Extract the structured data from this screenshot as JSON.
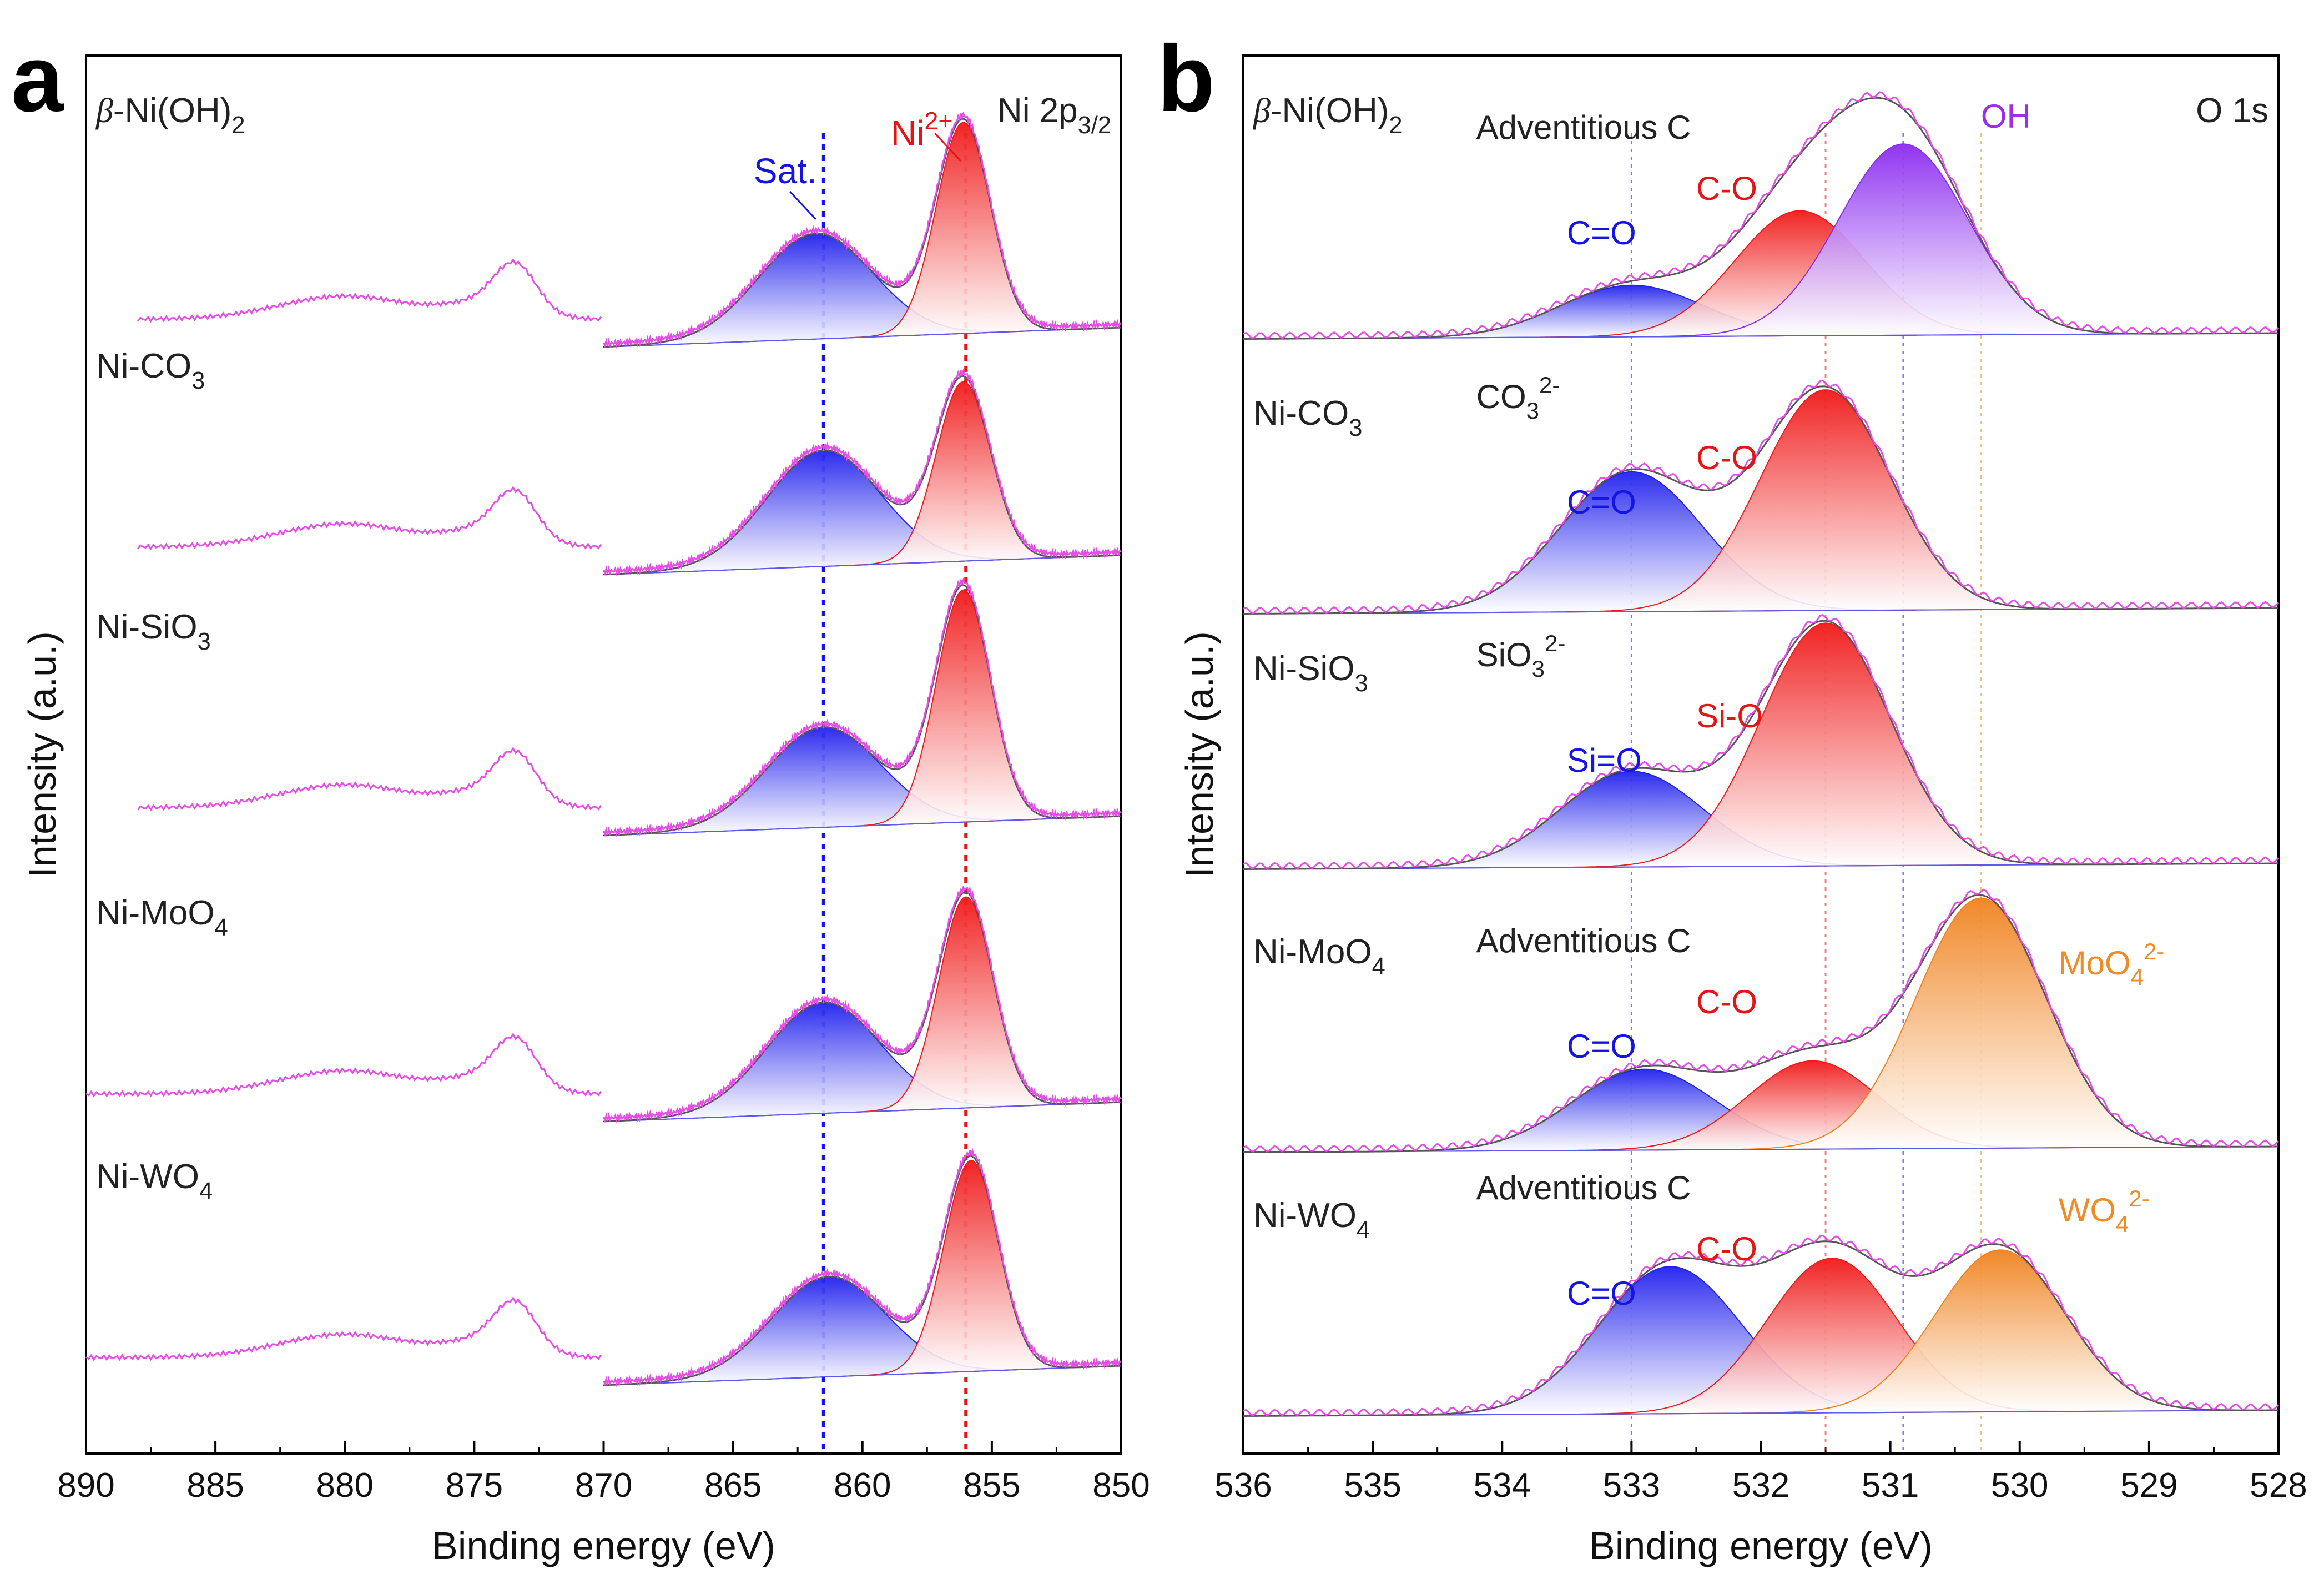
{
  "figure": {
    "panels": [
      {
        "letter": "a",
        "title_prefix": "β",
        "title_main": "-Ni(OH)",
        "title_sub": "2",
        "region_main": "Ni 2p",
        "region_sub": "3/2"
      },
      {
        "letter": "b",
        "title_prefix": "β",
        "title_main": "-Ni(OH)",
        "title_sub": "2",
        "region_main": "O 1s",
        "region_sub": ""
      }
    ]
  },
  "chart_data": [
    {
      "type": "line",
      "panel": "a",
      "title": "β-Ni(OH)2 — Ni 2p3/2",
      "xlabel": "Binding energy (eV)",
      "ylabel": "Intensity (a.u.)",
      "xlim": [
        890,
        850
      ],
      "x_reversed": true,
      "xticks": [
        890,
        885,
        880,
        875,
        870,
        865,
        860,
        855,
        850
      ],
      "xtick_labels": [
        "890",
        "885",
        "880",
        "875",
        "870",
        "865",
        "860",
        "855",
        "850"
      ],
      "reference_lines": [
        {
          "x": 861.5,
          "label": "Sat.",
          "color": "#1414e6"
        },
        {
          "x": 856.0,
          "label": "Ni2+",
          "color": "#e61414"
        }
      ],
      "annotations": [
        {
          "text": "Sat.",
          "color": "#1414e6",
          "points_to": 861.8
        },
        {
          "text": "Ni",
          "sup": "2+",
          "color": "#e61414",
          "points_to": 856.2
        }
      ],
      "series": [
        {
          "name": "β-Ni(OH)2",
          "label_parts": [
            [
              "β",
              "i"
            ],
            [
              "-Ni(OH)",
              ""
            ],
            [
              "2",
              "sub"
            ]
          ],
          "peaks": [
            {
              "name": "Sat.",
              "center": 861.8,
              "height": 1.0
            },
            {
              "name": "Ni2+",
              "center": 856.1,
              "height": 2.0
            }
          ],
          "survey_start": 888
        },
        {
          "name": "Ni-CO3",
          "label_parts": [
            [
              "Ni-CO",
              ""
            ],
            [
              "3",
              "sub"
            ]
          ],
          "peaks": [
            {
              "name": "Sat.",
              "center": 861.5,
              "height": 1.1
            },
            {
              "name": "Ni2+",
              "center": 856.1,
              "height": 1.7
            }
          ],
          "survey_start": 888
        },
        {
          "name": "Ni-SiO3",
          "label_parts": [
            [
              "Ni-SiO",
              ""
            ],
            [
              "3",
              "sub"
            ]
          ],
          "peaks": [
            {
              "name": "Sat.",
              "center": 861.5,
              "height": 0.95
            },
            {
              "name": "Ni2+",
              "center": 856.1,
              "height": 2.2
            }
          ],
          "survey_start": 888
        },
        {
          "name": "Ni-MoO4",
          "label_parts": [
            [
              "Ni-MoO",
              ""
            ],
            [
              "4",
              "sub"
            ]
          ],
          "peaks": [
            {
              "name": "Sat.",
              "center": 861.5,
              "height": 1.05
            },
            {
              "name": "Ni2+",
              "center": 856.0,
              "height": 2.0
            }
          ],
          "survey_start": 890
        },
        {
          "name": "Ni-WO4",
          "label_parts": [
            [
              "Ni-WO",
              ""
            ],
            [
              "4",
              "sub"
            ]
          ],
          "peaks": [
            {
              "name": "Sat.",
              "center": 861.3,
              "height": 0.95
            },
            {
              "name": "Ni2+",
              "center": 855.8,
              "height": 2.0
            }
          ],
          "survey_start": 890
        }
      ]
    },
    {
      "type": "line",
      "panel": "b",
      "title": "β-Ni(OH)2 — O 1s",
      "xlabel": "Binding energy (eV)",
      "ylabel": "Intensity (a.u.)",
      "xlim": [
        536,
        528
      ],
      "x_reversed": true,
      "xticks": [
        536,
        535,
        534,
        533,
        532,
        531,
        530,
        529,
        528
      ],
      "xtick_labels": [
        "536",
        "535",
        "534",
        "533",
        "532",
        "531",
        "530",
        "529",
        "528"
      ],
      "reference_lines": [
        {
          "x": 533.0,
          "color": "#1414e6"
        },
        {
          "x": 531.5,
          "color": "#e61414"
        },
        {
          "x": 530.9,
          "color": "#1414e6"
        },
        {
          "x": 530.3,
          "color": "#f08c28"
        }
      ],
      "series": [
        {
          "name": "β-Ni(OH)2",
          "label_parts": [
            [
              "β",
              "i"
            ],
            [
              "-Ni(OH)",
              ""
            ],
            [
              "2",
              "sub"
            ]
          ],
          "peaks": [
            {
              "name": "C=O",
              "center": 533.0,
              "height": 0.35,
              "color": "blue"
            },
            {
              "name": "C-O",
              "center": 531.7,
              "height": 0.85,
              "color": "red"
            },
            {
              "name": "OH",
              "center": 530.9,
              "height": 1.3,
              "color": "purple"
            }
          ],
          "annotations": [
            {
              "text": "Adventitious C",
              "color": "#222222"
            },
            {
              "text": "C-O",
              "color": "#e61414"
            },
            {
              "text": "C=O",
              "color": "#1414e6"
            },
            {
              "text": "OH",
              "color": "#9b30e6"
            }
          ]
        },
        {
          "name": "Ni-CO3",
          "label_parts": [
            [
              "Ni-CO",
              ""
            ],
            [
              "3",
              "sub"
            ]
          ],
          "peaks": [
            {
              "name": "C=O",
              "center": 533.0,
              "height": 0.95,
              "color": "blue"
            },
            {
              "name": "C-O",
              "center": 531.5,
              "height": 1.5,
              "color": "red"
            }
          ],
          "annotations": [
            {
              "text": "CO",
              "sub": "3",
              "sup": "2-",
              "color": "#222222"
            },
            {
              "text": "C-O",
              "color": "#e61414"
            },
            {
              "text": "C=O",
              "color": "#1414e6"
            }
          ]
        },
        {
          "name": "Ni-SiO3",
          "label_parts": [
            [
              "Ni-SiO",
              ""
            ],
            [
              "3",
              "sub"
            ]
          ],
          "peaks": [
            {
              "name": "Si=O",
              "center": 533.0,
              "height": 0.65,
              "color": "blue"
            },
            {
              "name": "Si-O",
              "center": 531.5,
              "height": 1.65,
              "color": "red"
            }
          ],
          "annotations": [
            {
              "text": "SiO",
              "sub": "3",
              "sup": "2-",
              "color": "#222222"
            },
            {
              "text": "Si-O",
              "color": "#e61414"
            },
            {
              "text": "Si=O",
              "color": "#1414e6"
            }
          ]
        },
        {
          "name": "Ni-MoO4",
          "label_parts": [
            [
              "Ni-MoO",
              ""
            ],
            [
              "4",
              "sub"
            ]
          ],
          "peaks": [
            {
              "name": "C=O",
              "center": 532.9,
              "height": 0.55,
              "color": "blue"
            },
            {
              "name": "C-O",
              "center": 531.6,
              "height": 0.6,
              "color": "red"
            },
            {
              "name": "MoO4 2-",
              "center": 530.3,
              "height": 1.7,
              "color": "orange"
            }
          ],
          "annotations": [
            {
              "text": "Adventitious C",
              "color": "#222222"
            },
            {
              "text": "C-O",
              "color": "#e61414"
            },
            {
              "text": "C=O",
              "color": "#1414e6"
            },
            {
              "text": "MoO",
              "sub": "4",
              "sup": "2-",
              "color": "#f08c28"
            }
          ]
        },
        {
          "name": "Ni-WO4",
          "label_parts": [
            [
              "Ni-WO",
              ""
            ],
            [
              "4",
              "sub"
            ]
          ],
          "peaks": [
            {
              "name": "C=O",
              "center": 532.7,
              "height": 1.0,
              "color": "blue"
            },
            {
              "name": "C-O",
              "center": 531.45,
              "height": 1.05,
              "color": "red"
            },
            {
              "name": "WO4 2-",
              "center": 530.15,
              "height": 1.1,
              "color": "orange"
            }
          ],
          "annotations": [
            {
              "text": "Adventitious C",
              "color": "#222222"
            },
            {
              "text": "C-O",
              "color": "#e61414"
            },
            {
              "text": "C=O",
              "color": "#1414e6"
            },
            {
              "text": "WO",
              "sub": "4",
              "sup": "2-",
              "color": "#f08c28"
            }
          ]
        }
      ]
    }
  ]
}
